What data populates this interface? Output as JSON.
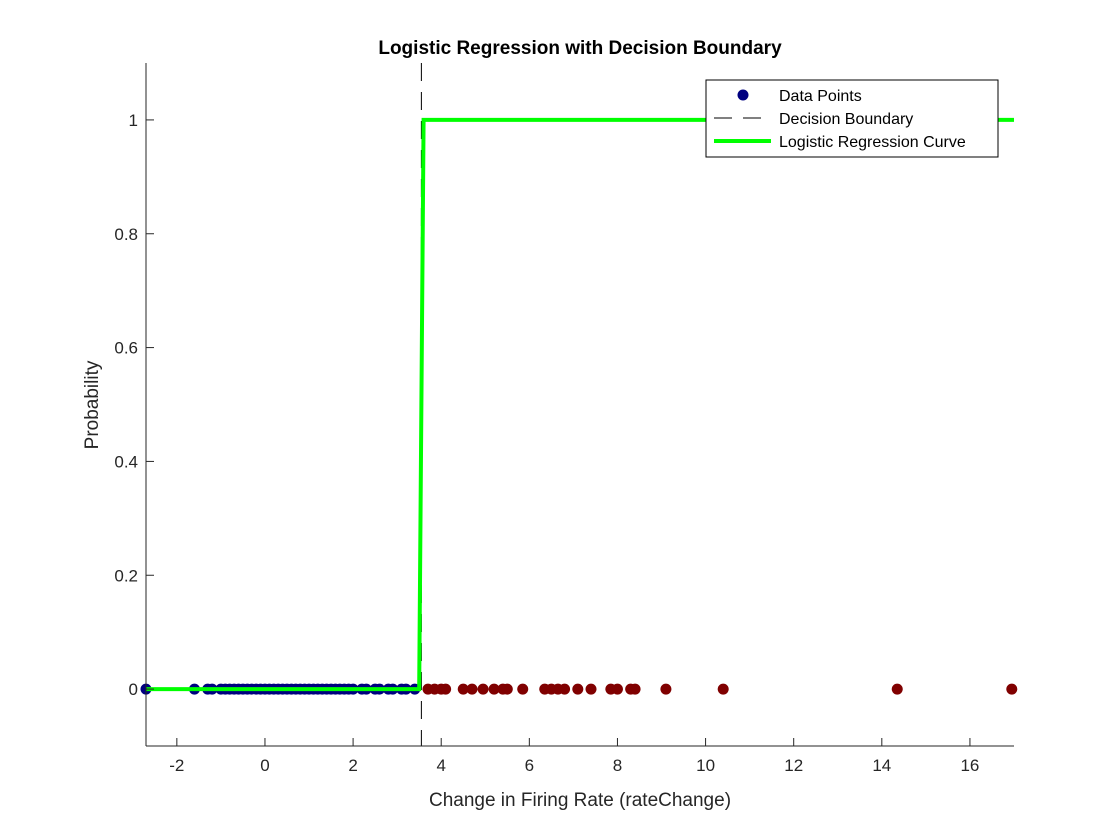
{
  "chart_data": {
    "type": "scatter",
    "title": "Logistic Regression with Decision Boundary",
    "xlabel": "Change in Firing Rate (rateChange)",
    "ylabel": "Probability",
    "xlim": [
      -2.7,
      17
    ],
    "ylim": [
      -0.1,
      1.1
    ],
    "xticks": [
      -2,
      0,
      2,
      4,
      6,
      8,
      10,
      12,
      14,
      16
    ],
    "yticks": [
      0,
      0.2,
      0.4,
      0.6,
      0.8,
      1
    ],
    "xtick_labels": [
      "-2",
      "0",
      "2",
      "4",
      "6",
      "8",
      "10",
      "12",
      "14",
      "16"
    ],
    "ytick_labels": [
      "0",
      "0.2",
      "0.4",
      "0.6",
      "0.8",
      "1"
    ],
    "grid": false,
    "legend_position": "top-right",
    "legend": [
      "Data Points",
      "Decision Boundary",
      "Logistic Regression Curve"
    ],
    "decision_boundary_x": 3.55,
    "colors": {
      "class0": "#000080",
      "class1": "#800000",
      "curve": "#00ff00",
      "boundary": "#000000"
    },
    "series": [
      {
        "name": "Data Points",
        "class": 0,
        "x": [
          -2.7,
          -1.6,
          -1.3,
          -1.2,
          -1.0,
          -0.9,
          -0.8,
          -0.7,
          -0.6,
          -0.5,
          -0.4,
          -0.3,
          -0.2,
          -0.1,
          0.0,
          0.1,
          0.2,
          0.3,
          0.4,
          0.5,
          0.6,
          0.7,
          0.8,
          0.9,
          1.0,
          1.1,
          1.2,
          1.3,
          1.4,
          1.5,
          1.6,
          1.7,
          1.8,
          1.9,
          2.0,
          2.2,
          2.3,
          2.5,
          2.6,
          2.8,
          2.9,
          3.1,
          3.2,
          3.4
        ],
        "y": [
          0,
          0,
          0,
          0,
          0,
          0,
          0,
          0,
          0,
          0,
          0,
          0,
          0,
          0,
          0,
          0,
          0,
          0,
          0,
          0,
          0,
          0,
          0,
          0,
          0,
          0,
          0,
          0,
          0,
          0,
          0,
          0,
          0,
          0,
          0,
          0,
          0,
          0,
          0,
          0,
          0,
          0,
          0,
          0
        ]
      },
      {
        "name": "Data Points",
        "class": 1,
        "x": [
          3.7,
          3.85,
          4.0,
          4.1,
          4.5,
          4.7,
          4.95,
          5.2,
          5.4,
          5.5,
          5.85,
          6.35,
          6.5,
          6.65,
          6.8,
          7.1,
          7.4,
          7.85,
          8.0,
          8.3,
          8.4,
          9.1,
          10.4,
          14.35,
          16.95
        ],
        "y": [
          0,
          0,
          0,
          0,
          0,
          0,
          0,
          0,
          0,
          0,
          0,
          0,
          0,
          0,
          0,
          0,
          0,
          0,
          0,
          0,
          0,
          0,
          0,
          0,
          0
        ]
      },
      {
        "name": "Logistic Regression Curve",
        "x": [
          -2.7,
          3.5,
          3.55,
          3.6,
          17
        ],
        "y": [
          0,
          0,
          0.5,
          1,
          1
        ]
      }
    ]
  }
}
